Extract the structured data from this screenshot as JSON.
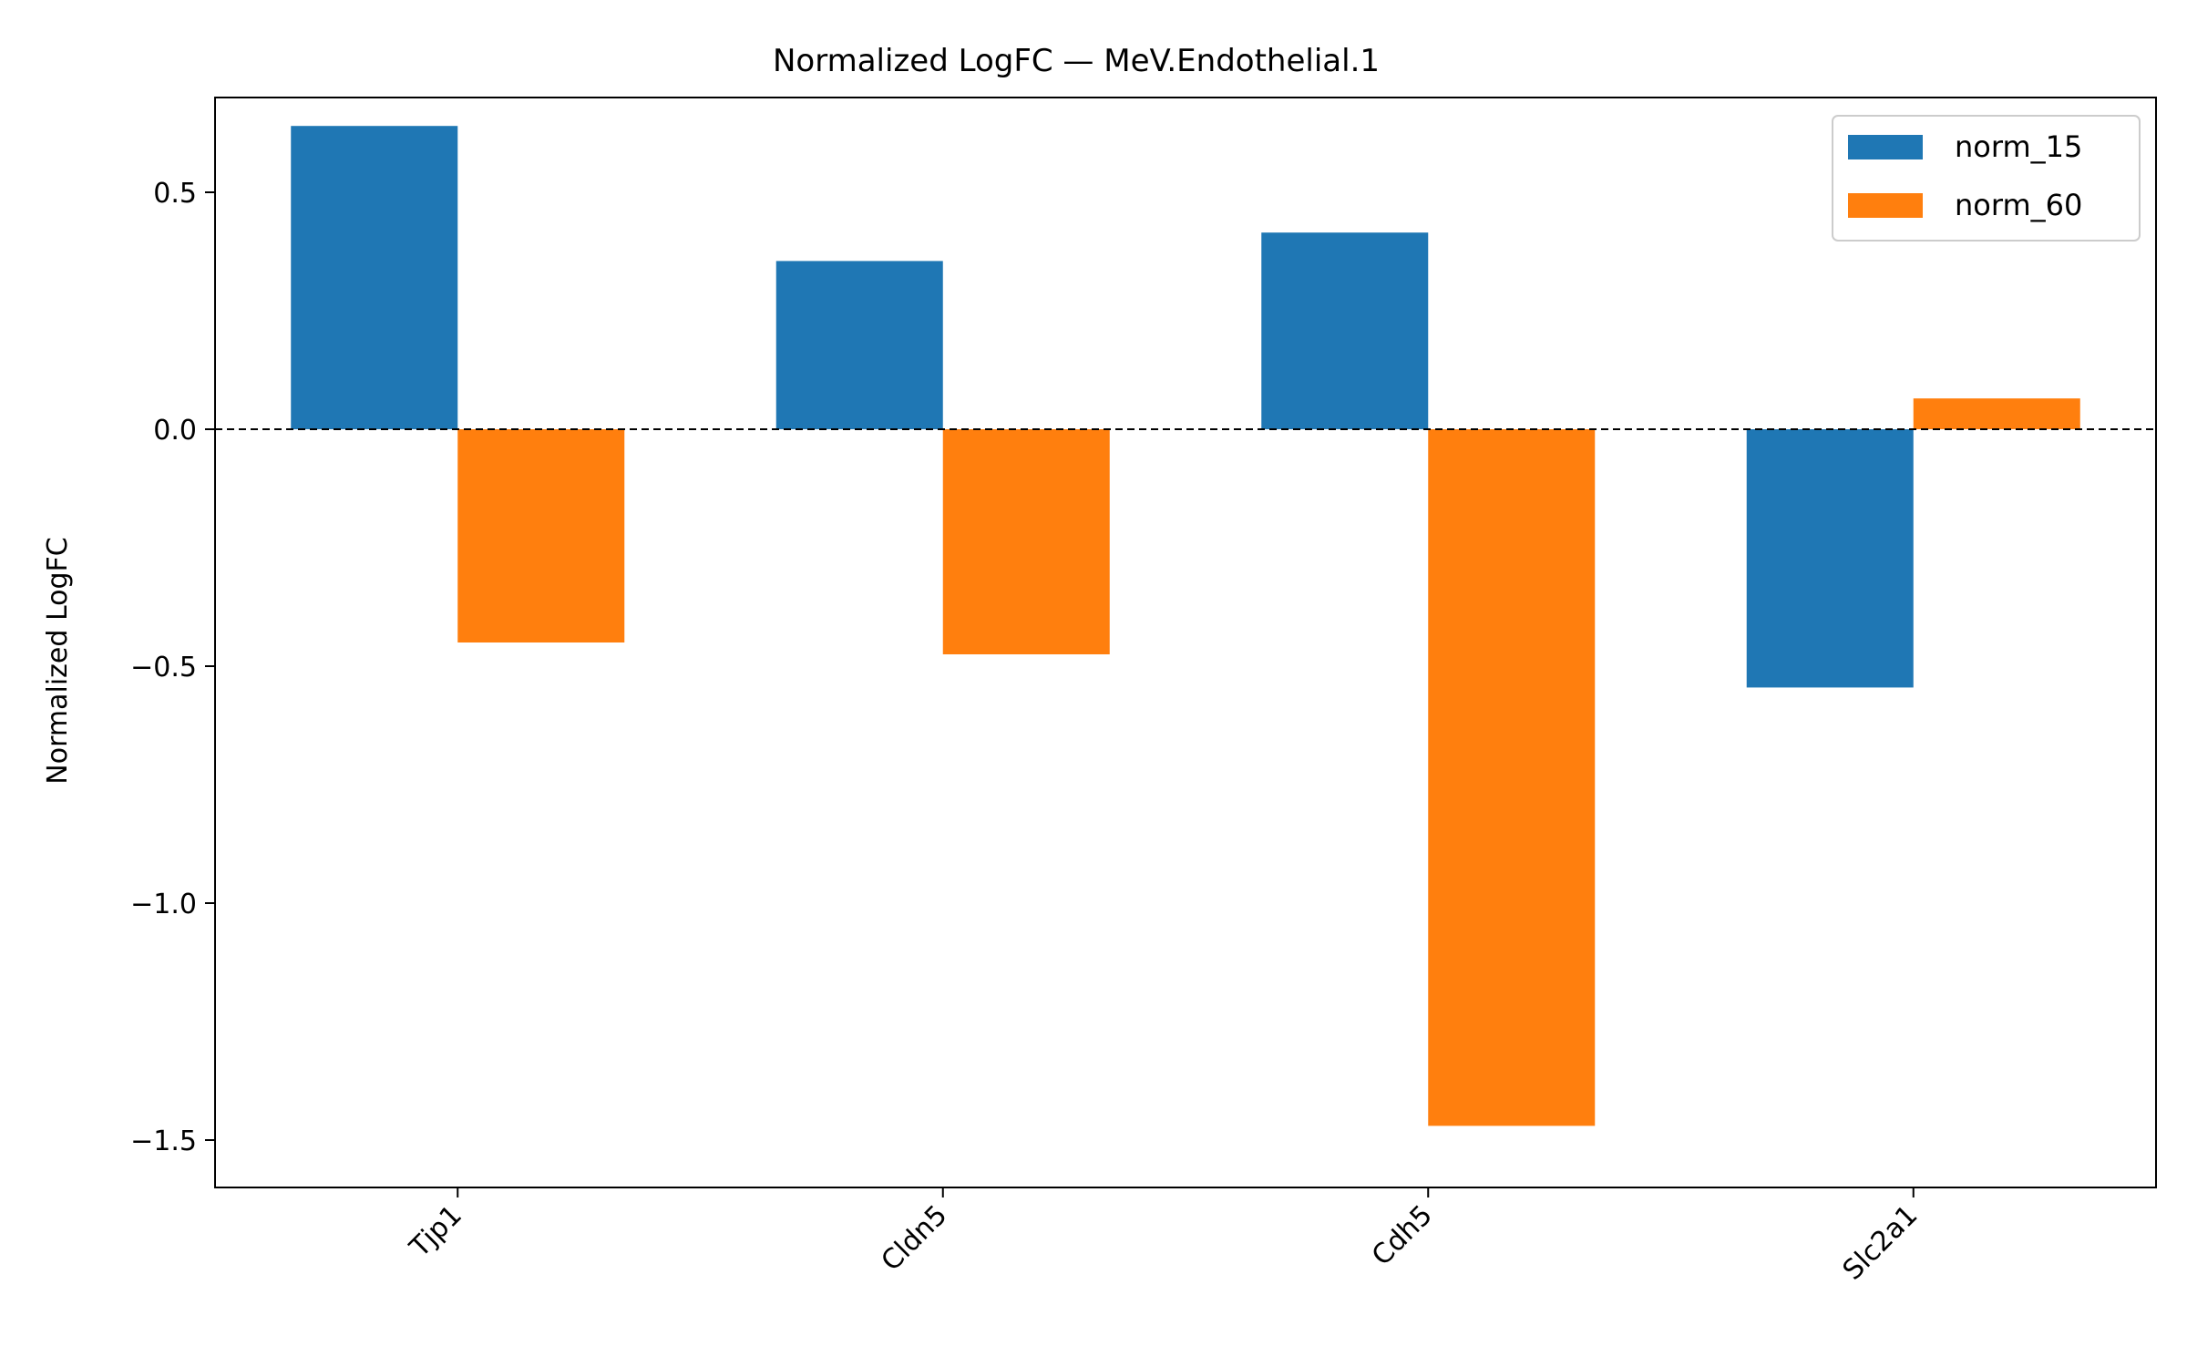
{
  "chart_data": {
    "type": "bar",
    "title": "Normalized LogFC — MeV.Endothelial.1",
    "xlabel": "",
    "ylabel": "Normalized LogFC",
    "categories": [
      "Tjp1",
      "Cldn5",
      "Cdh5",
      "Slc2a1"
    ],
    "series": [
      {
        "name": "norm_15",
        "color": "#1f77b4",
        "values": [
          0.64,
          0.355,
          0.415,
          -0.545
        ]
      },
      {
        "name": "norm_60",
        "color": "#ff7f0e",
        "values": [
          -0.45,
          -0.475,
          -1.47,
          0.065
        ]
      }
    ],
    "ylim": [
      -1.6,
      0.7
    ],
    "yticks": [
      0.5,
      0.0,
      -0.5,
      -1.0,
      -1.5
    ],
    "ytick_labels": [
      "0.5",
      "0.0",
      "−0.5",
      "−1.0",
      "−1.5"
    ],
    "reference_line": {
      "y": 0.0,
      "style": "dashed",
      "color": "#000000"
    },
    "legend_position": "upper-right",
    "grid": false
  }
}
